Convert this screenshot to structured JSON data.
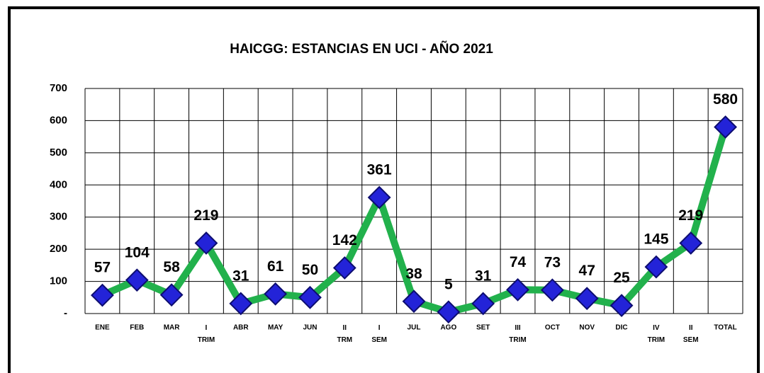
{
  "chart_data": {
    "type": "line",
    "title": "HAICGG: ESTANCIAS EN UCI - AÑO 2021",
    "categories": [
      "ENE",
      "FEB",
      "MAR",
      "I TRIM",
      "ABR",
      "MAY",
      "JUN",
      "II TRM",
      "I SEM",
      "JUL",
      "AGO",
      "SET",
      "III TRIM",
      "OCT",
      "NOV",
      "DIC",
      "IV TRIM",
      "II SEM",
      "TOTAL"
    ],
    "values": [
      57,
      104,
      58,
      219,
      31,
      61,
      50,
      142,
      361,
      38,
      5,
      31,
      74,
      73,
      47,
      25,
      145,
      219,
      580
    ],
    "color": "#22b14c",
    "marker_color": "#2323d8",
    "ylim": [
      0,
      700
    ],
    "yticks": [
      {
        "value": 0,
        "label": "-"
      },
      100,
      200,
      300,
      400,
      500,
      600,
      700
    ],
    "grid": true
  }
}
